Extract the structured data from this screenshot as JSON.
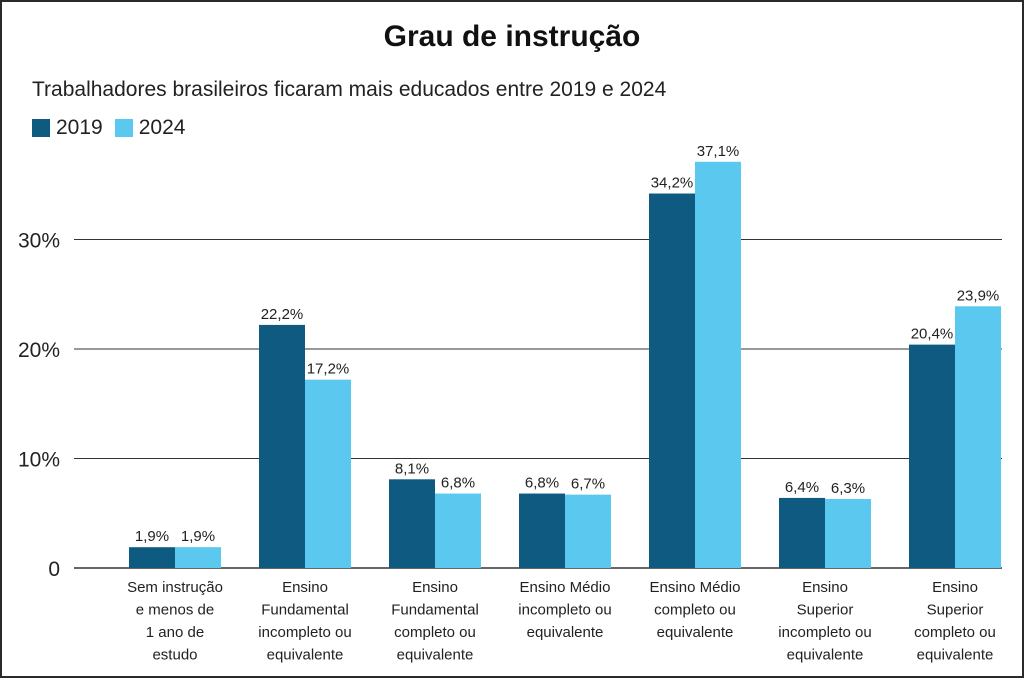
{
  "title": "Grau de instrução",
  "subtitle": "Trabalhadores brasileiros ficaram mais educados entre 2019 e 2024",
  "colors": {
    "series_2019": "#0f5a80",
    "series_2024": "#5bc8f0",
    "gridline": "#333333"
  },
  "chart_data": {
    "type": "bar",
    "title": "Grau de instrução",
    "subtitle": "Trabalhadores brasileiros ficaram mais educados entre 2019 e 2024",
    "categories": [
      [
        "Sem instrução",
        "e menos de",
        "1 ano de",
        "estudo"
      ],
      [
        "Ensino",
        "Fundamental",
        "incompleto ou",
        "equivalente"
      ],
      [
        "Ensino",
        "Fundamental",
        "completo ou",
        "equivalente"
      ],
      [
        "Ensino Médio",
        "incompleto ou",
        "equivalente"
      ],
      [
        "Ensino Médio",
        "completo ou",
        "equivalente"
      ],
      [
        "Ensino",
        "Superior",
        "incompleto ou",
        "equivalente"
      ],
      [
        "Ensino",
        "Superior",
        "completo ou",
        "equivalente"
      ]
    ],
    "series": [
      {
        "name": "2019",
        "values": [
          1.9,
          22.2,
          8.1,
          6.8,
          34.2,
          6.4,
          20.4
        ],
        "labels": [
          "1,9%",
          "22,2%",
          "8,1%",
          "6,8%",
          "34,2%",
          "6,4%",
          "20,4%"
        ]
      },
      {
        "name": "2024",
        "values": [
          1.9,
          17.2,
          6.8,
          6.7,
          37.1,
          6.3,
          23.9
        ],
        "labels": [
          "1,9%",
          "17,2%",
          "6,8%",
          "6,7%",
          "37,1%",
          "6,3%",
          "23,9%"
        ]
      }
    ],
    "yticks": [
      0,
      10,
      20,
      30
    ],
    "ytick_labels": [
      "0",
      "10%",
      "20%",
      "30%"
    ],
    "ylim": [
      0,
      40
    ],
    "grid": true,
    "legend_position": "top-left"
  }
}
